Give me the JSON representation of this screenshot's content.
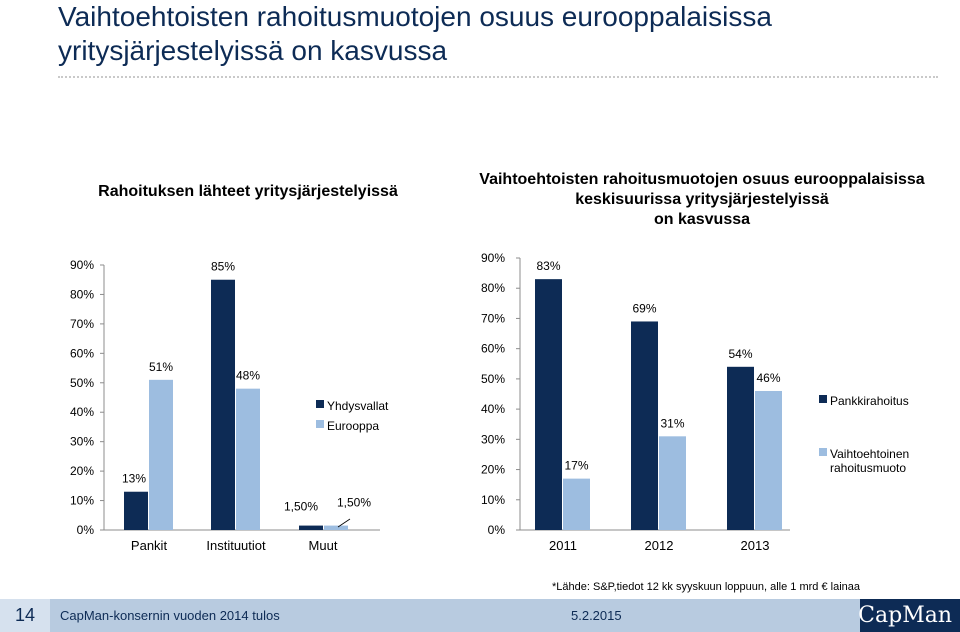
{
  "slide": {
    "title": "Vaihtoehtoisten rahoitusmuotojen osuus eurooppalaisissa yritysjärjestelyissä on kasvussa",
    "source_note": "*Lähde: S&P,tiedot 12 kk syyskuun loppuun, alle 1 mrd  € lainaa",
    "footer": {
      "page_number": "14",
      "company": "CapMan-konsernin vuoden 2014 tulos",
      "date": "5.2.2015",
      "logo": "CapMan"
    }
  },
  "colors": {
    "dark": "#0d2b55",
    "light": "#9dbde0",
    "axis": "#8c8c8c"
  },
  "chart_data": [
    {
      "type": "bar",
      "title": "Rahoituksen lähteet yritysjärjestelyissä",
      "categories": [
        "Pankit",
        "Instituutiot",
        "Muut"
      ],
      "series": [
        {
          "name": "Yhdysvallat",
          "values": [
            13,
            85,
            1.5
          ],
          "labels": [
            "13%",
            "85%",
            "1,50%"
          ]
        },
        {
          "name": "Eurooppa",
          "values": [
            51,
            48,
            1.5
          ],
          "labels": [
            "51%",
            "48%",
            "1,50%"
          ]
        }
      ],
      "ylim": [
        0,
        90
      ],
      "yticks": [
        "0%",
        "10%",
        "20%",
        "30%",
        "40%",
        "50%",
        "60%",
        "70%",
        "80%",
        "90%"
      ],
      "legend": "inside-right"
    },
    {
      "type": "bar",
      "title": "Vaihtoehtoisten rahoitusmuotojen osuus eurooppalaisissa keskisuurissa yritysjärjestelyissä on kasvussa",
      "categories": [
        "2011",
        "2012",
        "2013"
      ],
      "series": [
        {
          "name": "Pankkirahoitus",
          "values": [
            83,
            69,
            54
          ],
          "labels": [
            "83%",
            "69%",
            "54%"
          ]
        },
        {
          "name": "Vaihtoehtoinen rahoitusmuoto",
          "values": [
            17,
            31,
            46
          ],
          "labels": [
            "17%",
            "31%",
            "46%"
          ]
        }
      ],
      "ylim": [
        0,
        90
      ],
      "yticks": [
        "0%",
        "10%",
        "20%",
        "30%",
        "40%",
        "50%",
        "60%",
        "70%",
        "80%",
        "90%"
      ],
      "legend": "right"
    }
  ]
}
